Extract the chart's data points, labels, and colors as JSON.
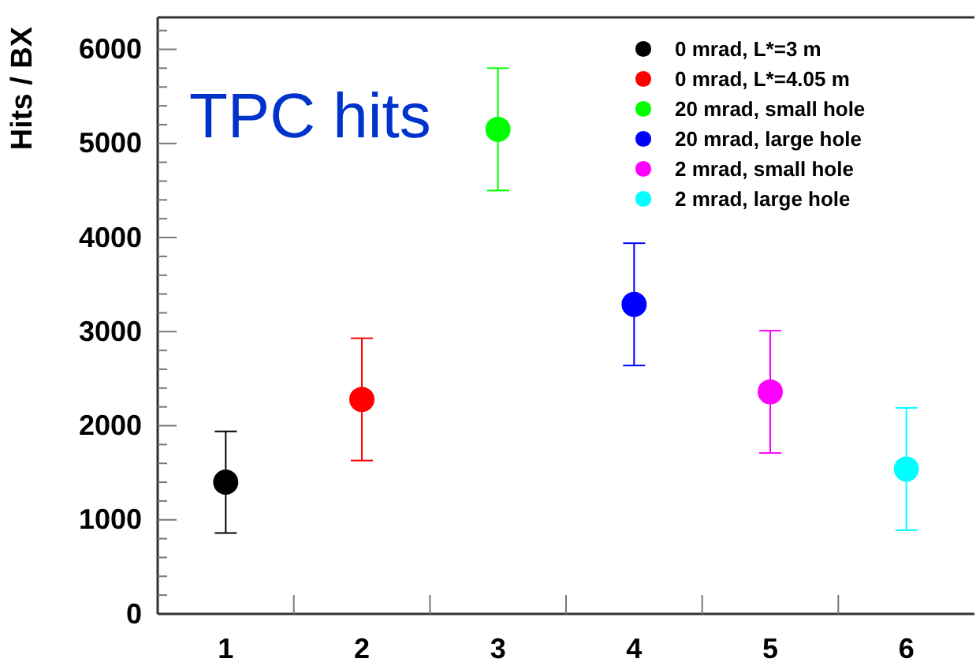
{
  "chart_data": {
    "type": "scatter",
    "title": "TPC hits",
    "ylabel": "Hits / BX",
    "categories": [
      "1",
      "2",
      "3",
      "4",
      "5",
      "6"
    ],
    "ylim": [
      0,
      6340
    ],
    "yticks": [
      0,
      {
        "value": 200,
        "label": null
      },
      {
        "value": 400,
        "label": null
      },
      {
        "value": 600,
        "label": null
      },
      {
        "value": 800,
        "label": null
      },
      1000,
      {
        "value": 1200,
        "label": null
      },
      {
        "value": 1400,
        "label": null
      },
      {
        "value": 1600,
        "label": null
      },
      {
        "value": 1800,
        "label": null
      },
      2000,
      {
        "value": 2200,
        "label": null
      },
      {
        "value": 2400,
        "label": null
      },
      {
        "value": 2600,
        "label": null
      },
      {
        "value": 2800,
        "label": null
      },
      3000,
      {
        "value": 3200,
        "label": null
      },
      {
        "value": 3400,
        "label": null
      },
      {
        "value": 3600,
        "label": null
      },
      {
        "value": 3800,
        "label": null
      },
      4000,
      {
        "value": 4200,
        "label": null
      },
      {
        "value": 4400,
        "label": null
      },
      {
        "value": 4600,
        "label": null
      },
      {
        "value": 4800,
        "label": null
      },
      5000,
      {
        "value": 5200,
        "label": null
      },
      {
        "value": 5400,
        "label": null
      },
      {
        "value": 5600,
        "label": null
      },
      {
        "value": 5800,
        "label": null
      },
      6000,
      {
        "value": 6200,
        "label": null
      }
    ],
    "marker": "circle",
    "legend": "top right",
    "grid": false,
    "series": [
      {
        "name": "0 mrad, L*=3 m",
        "color": "#000000",
        "values": [
          1400,
          null,
          null,
          null,
          null,
          null
        ],
        "errors": [
          540,
          null,
          null,
          null,
          null,
          null
        ]
      },
      {
        "name": "0 mrad, L*=4.05 m",
        "color": "#ff0000",
        "values": [
          null,
          2280,
          null,
          null,
          null,
          null
        ],
        "errors": [
          null,
          650,
          null,
          null,
          null,
          null
        ]
      },
      {
        "name": "20 mrad, small hole",
        "color": "#00ff00",
        "values": [
          null,
          null,
          5150,
          null,
          null,
          null
        ],
        "errors": [
          null,
          null,
          650,
          null,
          null,
          null
        ]
      },
      {
        "name": "20 mrad, large hole",
        "color": "#0000ff",
        "values": [
          null,
          null,
          null,
          3290,
          null,
          null
        ],
        "errors": [
          null,
          null,
          null,
          650,
          null,
          null
        ]
      },
      {
        "name": "2 mrad, small hole",
        "color": "#ff00ff",
        "values": [
          null,
          null,
          null,
          null,
          2360,
          null
        ],
        "errors": [
          null,
          null,
          null,
          null,
          650,
          null
        ]
      },
      {
        "name": "2 mrad, large hole",
        "color": "#00ffff",
        "values": [
          null,
          null,
          null,
          null,
          null,
          1540
        ],
        "errors": [
          null,
          null,
          null,
          null,
          null,
          650
        ]
      }
    ]
  }
}
